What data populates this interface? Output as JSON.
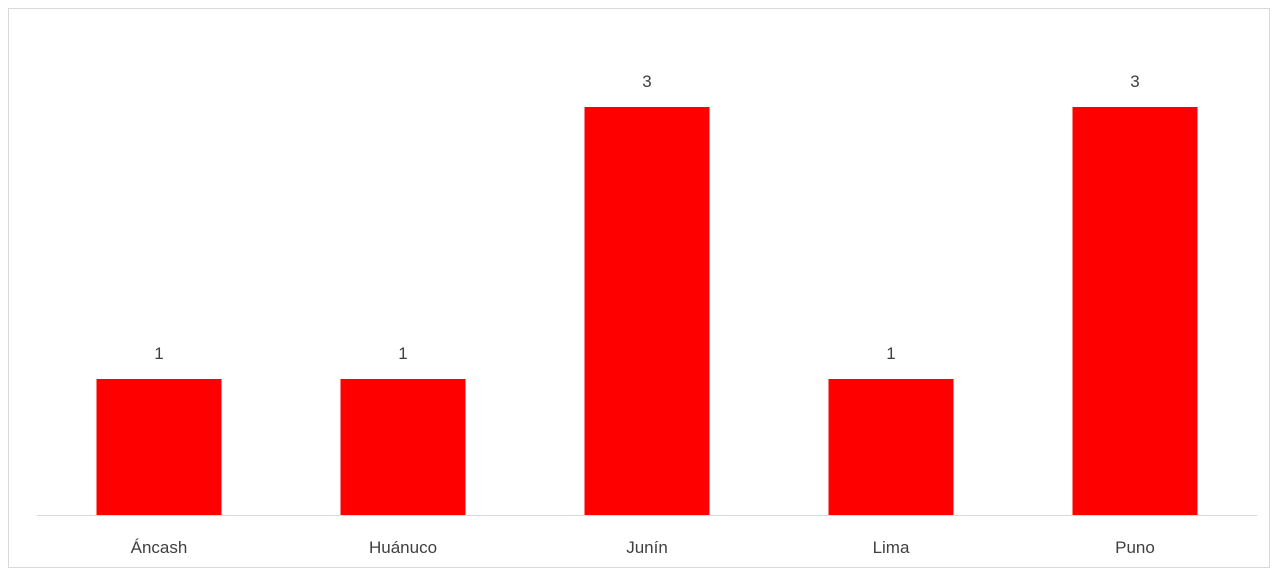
{
  "chart_data": {
    "type": "bar",
    "title": "",
    "xlabel": "",
    "ylabel": "",
    "categories": [
      "Áncash",
      "Huánuco",
      "Junín",
      "Lima",
      "Puno"
    ],
    "values": [
      1,
      1,
      3,
      1,
      3
    ],
    "data_labels": [
      "1",
      "1",
      "3",
      "1",
      "3"
    ],
    "ylim": [
      0,
      3
    ],
    "grid": false,
    "legend": "none",
    "bar_color": "#ff0000",
    "axis_color": "#d9d9d9",
    "label_color": "#404040"
  }
}
